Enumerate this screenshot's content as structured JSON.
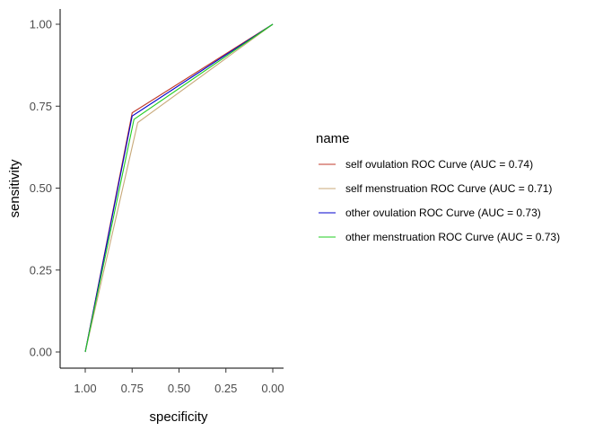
{
  "chart_data": {
    "type": "line",
    "xlabel": "specificity",
    "ylabel": "sensitivity",
    "x_reversed": true,
    "xlim": [
      1.0,
      0.0
    ],
    "ylim": [
      0.0,
      1.0
    ],
    "x_ticks": [
      "1.00",
      "0.75",
      "0.50",
      "0.25",
      "0.00"
    ],
    "y_ticks": [
      "0.00",
      "0.25",
      "0.50",
      "0.75",
      "1.00"
    ],
    "grid": false,
    "legend": {
      "title": "name",
      "placement": "right"
    },
    "series": [
      {
        "name": "self ovulation ROC Curve (AUC = 0.74)",
        "color": "#c0392b",
        "points": [
          {
            "x": 1.0,
            "y": 0.0
          },
          {
            "x": 0.75,
            "y": 0.73
          },
          {
            "x": 0.0,
            "y": 1.0
          }
        ]
      },
      {
        "name": "self menstruation ROC Curve (AUC = 0.71)",
        "color": "#c8a97a",
        "points": [
          {
            "x": 1.0,
            "y": 0.0
          },
          {
            "x": 0.72,
            "y": 0.7
          },
          {
            "x": 0.0,
            "y": 1.0
          }
        ]
      },
      {
        "name": "other ovulation ROC Curve (AUC = 0.73)",
        "color": "#0000cc",
        "points": [
          {
            "x": 1.0,
            "y": 0.0
          },
          {
            "x": 0.75,
            "y": 0.72
          },
          {
            "x": 0.0,
            "y": 1.0
          }
        ]
      },
      {
        "name": "other menstruation ROC Curve (AUC = 0.73)",
        "color": "#22cc22",
        "points": [
          {
            "x": 1.0,
            "y": 0.0
          },
          {
            "x": 0.74,
            "y": 0.71
          },
          {
            "x": 0.0,
            "y": 1.0
          }
        ]
      }
    ]
  }
}
